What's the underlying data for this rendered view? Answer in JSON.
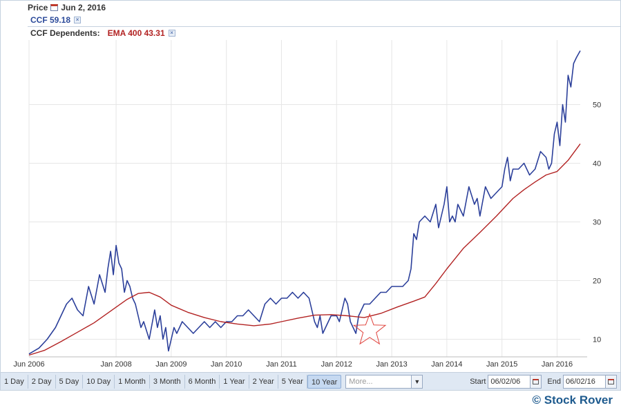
{
  "header": {
    "price_label": "Price",
    "date": "Jun 2, 2016",
    "ticker_value": "CCF 59.18",
    "dependents_label": "CCF Dependents:",
    "ema_value": "EMA 400 43.31",
    "close_glyph": "×"
  },
  "toolbar": {
    "ranges": [
      "1 Day",
      "2 Day",
      "5 Day",
      "10 Day",
      "1 Month",
      "3 Month",
      "6 Month",
      "1 Year",
      "2 Year",
      "5 Year",
      "10 Year"
    ],
    "active_range": "10 Year",
    "more_placeholder": "More...",
    "start_label": "Start",
    "start_value": "06/02/06",
    "end_label": "End",
    "end_value": "06/02/16"
  },
  "brand": "© Stock Rover",
  "colors": {
    "price": "#2b3f9a",
    "ema": "#b22222",
    "grid": "#e6e6e6",
    "star": "#e0443e"
  },
  "icons": {
    "calendar": "calendar-icon",
    "close": "close-icon",
    "dropdown": "chevron-down-icon",
    "star": "star-annotation"
  },
  "chart_data": {
    "type": "line",
    "xlim": [
      2006.42,
      2016.42
    ],
    "ylim": [
      7,
      61
    ],
    "y_axis_position": "right",
    "grid": true,
    "x_ticks": [
      {
        "value": 2006.42,
        "label": "Jun 2006"
      },
      {
        "value": 2008.0,
        "label": "Jan 2008"
      },
      {
        "value": 2009.0,
        "label": "Jan 2009"
      },
      {
        "value": 2010.0,
        "label": "Jan 2010"
      },
      {
        "value": 2011.0,
        "label": "Jan 2011"
      },
      {
        "value": 2012.0,
        "label": "Jan 2012"
      },
      {
        "value": 2013.0,
        "label": "Jan 2013"
      },
      {
        "value": 2014.0,
        "label": "Jan 2014"
      },
      {
        "value": 2015.0,
        "label": "Jan 2015"
      },
      {
        "value": 2016.0,
        "label": "Jan 2016"
      }
    ],
    "y_ticks": [
      10,
      20,
      30,
      40,
      50
    ],
    "series": [
      {
        "name": "CCF",
        "x": [
          2006.42,
          2006.6,
          2006.75,
          2006.9,
          2007.0,
          2007.1,
          2007.2,
          2007.3,
          2007.4,
          2007.5,
          2007.6,
          2007.7,
          2007.8,
          2007.85,
          2007.9,
          2007.95,
          2008.0,
          2008.05,
          2008.1,
          2008.15,
          2008.2,
          2008.25,
          2008.3,
          2008.35,
          2008.45,
          2008.5,
          2008.6,
          2008.7,
          2008.75,
          2008.8,
          2008.85,
          2008.9,
          2008.95,
          2009.0,
          2009.05,
          2009.1,
          2009.15,
          2009.2,
          2009.3,
          2009.4,
          2009.5,
          2009.6,
          2009.7,
          2009.8,
          2009.9,
          2010.0,
          2010.1,
          2010.2,
          2010.3,
          2010.4,
          2010.5,
          2010.6,
          2010.7,
          2010.8,
          2010.9,
          2011.0,
          2011.1,
          2011.2,
          2011.3,
          2011.4,
          2011.5,
          2011.6,
          2011.65,
          2011.7,
          2011.75,
          2011.8,
          2011.85,
          2011.9,
          2012.0,
          2012.05,
          2012.1,
          2012.15,
          2012.2,
          2012.25,
          2012.3,
          2012.35,
          2012.4,
          2012.45,
          2012.5,
          2012.6,
          2012.7,
          2012.8,
          2012.9,
          2013.0,
          2013.1,
          2013.2,
          2013.3,
          2013.35,
          2013.4,
          2013.45,
          2013.5,
          2013.6,
          2013.7,
          2013.8,
          2013.85,
          2013.9,
          2013.95,
          2014.0,
          2014.05,
          2014.1,
          2014.15,
          2014.2,
          2014.3,
          2014.4,
          2014.5,
          2014.55,
          2014.6,
          2014.7,
          2014.8,
          2014.9,
          2015.0,
          2015.05,
          2015.1,
          2015.15,
          2015.2,
          2015.3,
          2015.4,
          2015.5,
          2015.6,
          2015.7,
          2015.8,
          2015.85,
          2015.9,
          2015.95,
          2016.0,
          2016.05,
          2016.1,
          2016.15,
          2016.2,
          2016.25,
          2016.3,
          2016.35,
          2016.42
        ],
        "values": [
          7.5,
          8.5,
          10,
          12,
          14,
          16,
          17,
          15,
          14,
          19,
          16,
          21,
          18,
          22,
          25,
          21,
          26,
          23,
          22,
          18,
          20,
          19,
          17,
          16,
          12,
          13,
          10,
          15,
          12,
          14,
          10,
          12,
          8,
          10,
          12,
          11,
          12,
          13,
          12,
          11,
          12,
          13,
          12,
          13,
          12,
          13,
          13,
          14,
          14,
          15,
          14,
          13,
          16,
          17,
          16,
          17,
          17,
          18,
          17,
          18,
          17,
          13,
          12,
          14,
          11,
          12,
          13,
          14,
          14,
          13,
          15,
          17,
          16,
          13,
          12,
          11,
          14,
          15,
          16,
          16,
          17,
          18,
          18,
          19,
          19,
          19,
          20,
          22,
          28,
          27,
          30,
          31,
          30,
          33,
          29,
          31,
          33,
          36,
          30,
          31,
          30,
          33,
          31,
          36,
          33,
          34,
          31,
          36,
          34,
          35,
          36,
          39,
          41,
          37,
          39,
          39,
          40,
          38,
          39,
          42,
          41,
          39,
          40,
          45,
          47,
          43,
          50,
          47,
          55,
          53,
          57,
          58,
          59.18
        ]
      },
      {
        "name": "EMA 400",
        "x": [
          2006.42,
          2006.7,
          2007.0,
          2007.3,
          2007.6,
          2007.9,
          2008.2,
          2008.4,
          2008.6,
          2008.8,
          2009.0,
          2009.3,
          2009.6,
          2009.9,
          2010.2,
          2010.5,
          2010.8,
          2011.0,
          2011.3,
          2011.6,
          2011.9,
          2012.2,
          2012.5,
          2012.8,
          2013.1,
          2013.4,
          2013.6,
          2013.8,
          2014.0,
          2014.3,
          2014.6,
          2014.9,
          2015.2,
          2015.4,
          2015.6,
          2015.8,
          2016.0,
          2016.2,
          2016.42
        ],
        "values": [
          7.3,
          8.1,
          9.6,
          11.2,
          12.8,
          14.8,
          16.8,
          17.8,
          18.0,
          17.2,
          15.8,
          14.6,
          13.7,
          13.0,
          12.6,
          12.3,
          12.6,
          13.0,
          13.6,
          14.1,
          14.2,
          14.0,
          13.7,
          14.4,
          15.5,
          16.5,
          17.2,
          19.5,
          22.0,
          25.5,
          28.2,
          31.0,
          34.0,
          35.5,
          36.8,
          38.0,
          38.6,
          40.5,
          43.31
        ]
      }
    ],
    "annotations": [
      {
        "type": "star",
        "x": 2012.6,
        "y": 11.5
      }
    ]
  }
}
